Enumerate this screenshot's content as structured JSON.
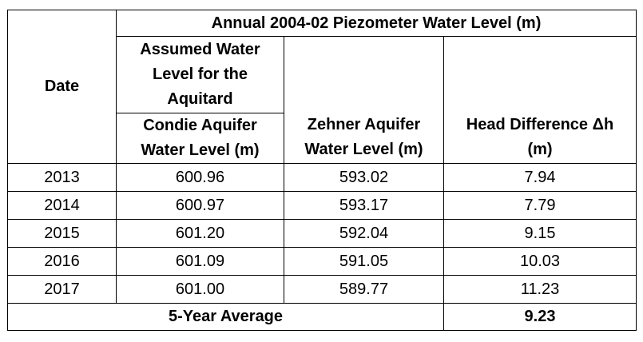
{
  "table": {
    "title": "Annual 2004-02 Piezometer Water Level (m)",
    "date_header": "Date",
    "aquitard_header_lines": [
      "Assumed Water",
      "Level for the",
      "Aquitard"
    ],
    "condie_header_lines": [
      "Condie Aquifer",
      "Water Level (m)"
    ],
    "zehner_header_lines": [
      "Zehner Aquifer",
      "Water Level (m)"
    ],
    "head_header_lines": [
      "Head Difference Δh",
      "(m)"
    ],
    "rows": [
      {
        "date": "2013",
        "condie": "600.96",
        "zehner": "593.02",
        "head": "7.94"
      },
      {
        "date": "2014",
        "condie": "600.97",
        "zehner": "593.17",
        "head": "7.79"
      },
      {
        "date": "2015",
        "condie": "601.20",
        "zehner": "592.04",
        "head": "9.15"
      },
      {
        "date": "2016",
        "condie": "601.09",
        "zehner": "591.05",
        "head": "10.03"
      },
      {
        "date": "2017",
        "condie": "601.00",
        "zehner": "589.77",
        "head": "11.23"
      }
    ],
    "average_label": "5-Year Average",
    "average_value": "9.23"
  }
}
